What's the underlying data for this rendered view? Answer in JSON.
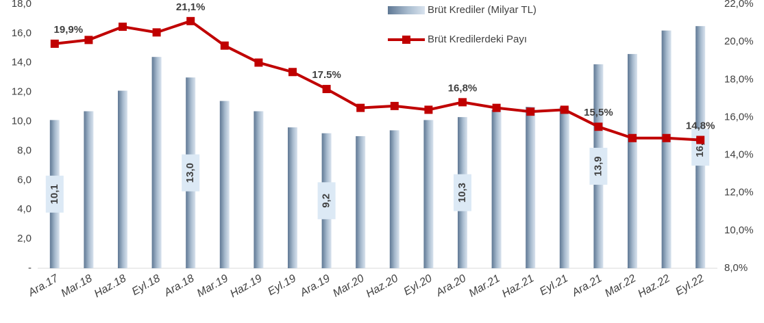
{
  "chart_data": {
    "type": "bar",
    "categories": [
      "Ara.17",
      "Mar.18",
      "Haz.18",
      "Eyl.18",
      "Ara.18",
      "Mar.19",
      "Haz.19",
      "Eyl.19",
      "Ara.19",
      "Mar.20",
      "Haz.20",
      "Eyl.20",
      "Ara.20",
      "Mar.21",
      "Haz.21",
      "Eyl.21",
      "Ara.21",
      "Mar.22",
      "Haz.22",
      "Eyl.22"
    ],
    "series": [
      {
        "name": "Brüt Krediler (Milyar TL)",
        "type": "bar",
        "color": "#8fa5bd",
        "axis": "y",
        "values": [
          10.1,
          10.7,
          12.1,
          14.4,
          13.0,
          11.4,
          10.7,
          9.6,
          9.2,
          9.0,
          9.4,
          10.1,
          10.3,
          10.8,
          11.0,
          11.0,
          13.9,
          14.6,
          16.2,
          16.5
        ],
        "value_labels": [
          "10,1",
          null,
          null,
          null,
          "13,0",
          null,
          null,
          null,
          "9,2",
          null,
          null,
          null,
          "10,3",
          null,
          null,
          null,
          "13,9",
          null,
          null,
          "16,5"
        ]
      },
      {
        "name": "Brüt Kredilerdeki Payı",
        "type": "line",
        "color": "#c00000",
        "axis": "y2",
        "values": [
          19.9,
          20.1,
          20.8,
          20.5,
          21.1,
          19.8,
          18.9,
          18.4,
          17.5,
          16.5,
          16.6,
          16.4,
          16.8,
          16.5,
          16.3,
          16.4,
          15.5,
          14.9,
          14.9,
          14.8
        ],
        "value_labels": [
          "19,9%",
          null,
          null,
          null,
          "21,1%",
          null,
          null,
          null,
          "17.5%",
          null,
          null,
          null,
          "16,8%",
          null,
          null,
          null,
          "15,5%",
          null,
          null,
          "14,8%"
        ]
      }
    ],
    "ylim": [
      0,
      18
    ],
    "yticks": [
      {
        "value": 0,
        "label": "-"
      },
      {
        "value": 2,
        "label": "2,0"
      },
      {
        "value": 4,
        "label": "4,0"
      },
      {
        "value": 6,
        "label": "6,0"
      },
      {
        "value": 8,
        "label": "8,0"
      },
      {
        "value": 10,
        "label": "10,0"
      },
      {
        "value": 12,
        "label": "12,0"
      },
      {
        "value": 14,
        "label": "14,0"
      },
      {
        "value": 16,
        "label": "16,0"
      },
      {
        "value": 18,
        "label": "18,0"
      }
    ],
    "y2lim": [
      8,
      22
    ],
    "y2ticks": [
      {
        "value": 8,
        "label": "8,0%"
      },
      {
        "value": 10,
        "label": "10,0%"
      },
      {
        "value": 12,
        "label": "12,0%"
      },
      {
        "value": 14,
        "label": "14,0%"
      },
      {
        "value": 16,
        "label": "16,0%"
      },
      {
        "value": 18,
        "label": "18,0%"
      },
      {
        "value": 20,
        "label": "20,0%"
      },
      {
        "value": 22,
        "label": "22,0%"
      }
    ],
    "grid": false,
    "legend": "top-right"
  }
}
